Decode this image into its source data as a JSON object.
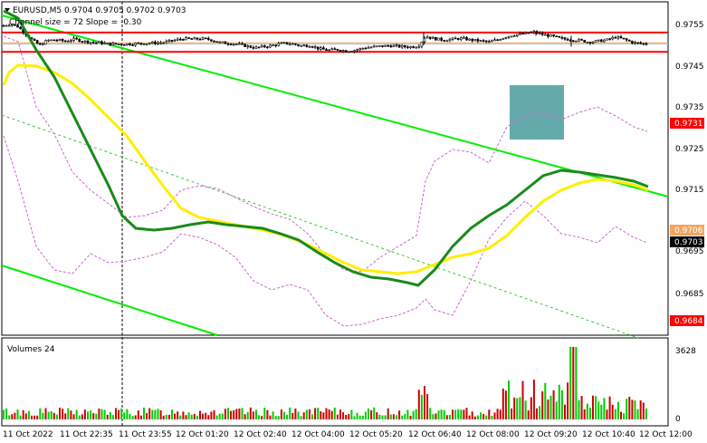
{
  "window": {
    "symbol_line": "EURUSD,M5  0.9704 0.9705 0.9702 0.9703",
    "indicator_line": "Channel size = 72 Slope = -0.30"
  },
  "volumes_panel": {
    "title": "Volumes 24",
    "axis_labels": [
      "3628",
      "0"
    ]
  },
  "price_axis": {
    "labels": [
      "0.9755",
      "0.9745",
      "0.9735",
      "0.9725",
      "0.9715",
      "0.9695",
      "0.9685"
    ],
    "tags": [
      {
        "name": "resistance-tag",
        "text": "0.9731",
        "color": "#ff0000"
      },
      {
        "name": "ma-tag",
        "text": "0.9706",
        "color": "#f4a460"
      },
      {
        "name": "current-price-tag",
        "text": "0.9703",
        "color": "#000000"
      },
      {
        "name": "support-tag",
        "text": "0.9684",
        "color": "#ff0000"
      }
    ]
  },
  "time_axis": {
    "labels": [
      "11 Oct 2022",
      "11 Oct 22:35",
      "11 Oct 23:55",
      "12 Oct 01:20",
      "12 Oct 02:40",
      "12 Oct 04:00",
      "12 Oct 05:20",
      "12 Oct 06:40",
      "12 Oct 08:00",
      "12 Oct 09:20",
      "12 Oct 10:40",
      "12 Oct 12:00"
    ]
  },
  "colors": {
    "candle": "#000000",
    "resistance_line": "#ff0000",
    "channel_line": "#00ee00",
    "fast_ma": "#1a8a1a",
    "slow_ma": "#ffee00",
    "band": "#cc66cc",
    "highlight_box": "#4a9b9b"
  },
  "chart_data": {
    "type": "candlestick",
    "symbol": "EURUSD",
    "timeframe": "M5",
    "ylim": [
      0.9683,
      0.9762
    ],
    "levels": [
      0.9731,
      0.9684
    ],
    "ma_value": 0.9706,
    "last_price": 0.9703,
    "volume_max": 3628
  }
}
